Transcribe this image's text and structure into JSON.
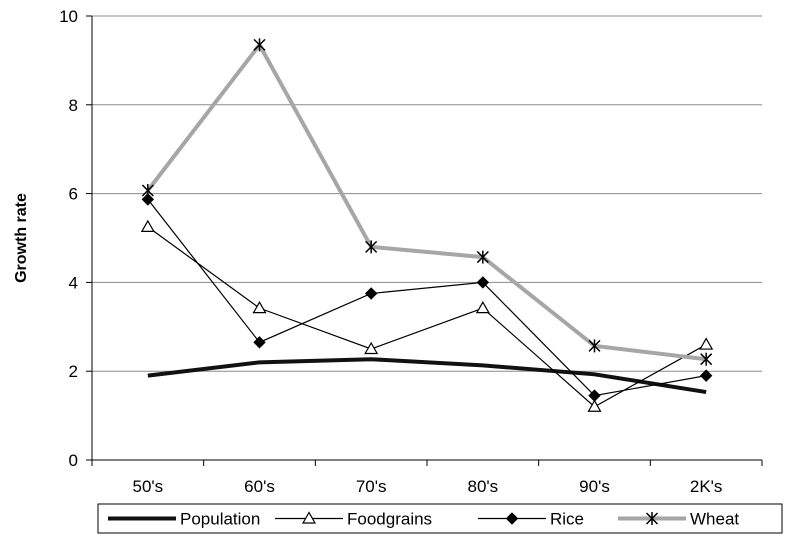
{
  "chart_data": {
    "type": "line",
    "title": "",
    "xlabel": "",
    "ylabel": "Growth rate",
    "categories": [
      "50's",
      "60's",
      "70's",
      "80's",
      "90's",
      "2K's"
    ],
    "ylim": [
      0,
      10
    ],
    "yticks": [
      "0",
      "2",
      "4",
      "6",
      "8",
      "10"
    ],
    "grid": true,
    "legend_position": "bottom",
    "series": [
      {
        "name": "Population",
        "values": [
          1.9,
          2.2,
          2.27,
          2.13,
          1.93,
          1.53
        ],
        "color": "#111111",
        "marker": "none",
        "line_style": "thick"
      },
      {
        "name": "Foodgrains",
        "values": [
          5.25,
          3.42,
          2.5,
          3.42,
          1.2,
          2.6
        ],
        "color": "#000000",
        "marker": "open-triangle",
        "line_style": "thin"
      },
      {
        "name": "Rice",
        "values": [
          5.87,
          2.65,
          3.75,
          4.0,
          1.45,
          1.9
        ],
        "color": "#000000",
        "marker": "filled-diamond",
        "line_style": "thin"
      },
      {
        "name": "Wheat",
        "values": [
          6.07,
          9.35,
          4.8,
          4.57,
          2.57,
          2.27
        ],
        "color": "#a6a6a6",
        "marker": "star",
        "line_style": "thick"
      }
    ]
  }
}
